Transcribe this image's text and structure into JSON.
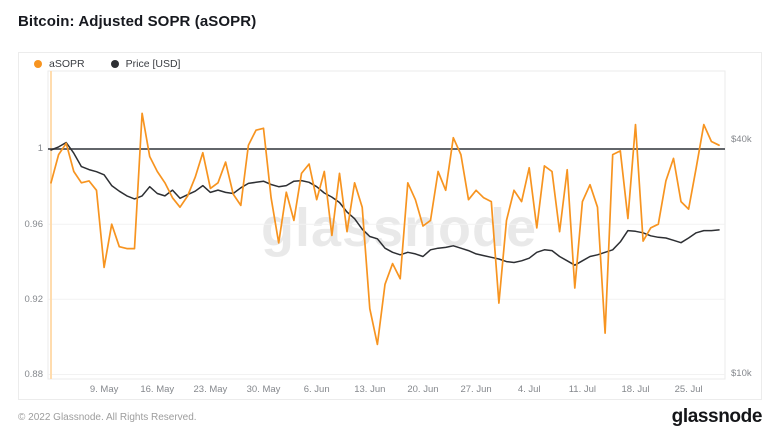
{
  "page": {
    "title": "Bitcoin: Adjusted SOPR (aSOPR)"
  },
  "legend": [
    {
      "label": "aSOPR",
      "color": "#f79420"
    },
    {
      "label": "Price [USD]",
      "color": "#2d2f33"
    }
  ],
  "watermark": "glassnode",
  "footer": {
    "copyright": "© 2022 Glassnode. All Rights Reserved.",
    "brand": "glassnode"
  },
  "colors": {
    "accent_orange": "#f79420",
    "price_black": "#2d2f33",
    "reference_line": "#4c4f54",
    "gridline": "#f2f2f2",
    "plot_border": "#ebebeb",
    "start_marker": "#ffdcae"
  },
  "chart_data": {
    "type": "line",
    "title": "Bitcoin: Adjusted SOPR (aSOPR)",
    "interval": "1d",
    "start_date": "2022-05-02",
    "end_date": "2022-07-29",
    "grid": "horizontal-only",
    "legend_position": "top-left",
    "x_ticks": {
      "indices": [
        7,
        14,
        21,
        28,
        35,
        42,
        49,
        56,
        63,
        70,
        77,
        84
      ],
      "labels": [
        "9. May",
        "16. May",
        "23. May",
        "30. May",
        "6. Jun",
        "13. Jun",
        "20. Jun",
        "27. Jun",
        "4. Jul",
        "11. Jul",
        "18. Jul",
        "25. Jul"
      ]
    },
    "left_axis": {
      "name": "aSOPR",
      "scale": "linear",
      "ticks": [
        1,
        0.96,
        0.92,
        0.88
      ],
      "tick_labels": [
        "1",
        "0.96",
        "0.92",
        "0.88"
      ],
      "top": 1.0415,
      "bottom": 0.8776,
      "reference_line": 1
    },
    "right_axis": {
      "name": "Price [USD]",
      "scale": "log",
      "ticks": [
        40000,
        10000
      ],
      "tick_labels": [
        "$40k",
        "$10k"
      ],
      "top": 59800,
      "bottom": 9700
    },
    "series": [
      {
        "name": "aSOPR",
        "axis": "left",
        "color": "#f79420",
        "width": 1.7,
        "values": [
          0.982,
          0.997,
          1.003,
          0.988,
          0.982,
          0.983,
          0.978,
          0.937,
          0.96,
          0.948,
          0.947,
          0.947,
          1.019,
          0.996,
          0.988,
          0.982,
          0.974,
          0.969,
          0.975,
          0.985,
          0.998,
          0.979,
          0.982,
          0.993,
          0.976,
          0.97,
          1.002,
          1.01,
          1.011,
          0.974,
          0.95,
          0.977,
          0.962,
          0.987,
          0.992,
          0.973,
          0.988,
          0.954,
          0.987,
          0.956,
          0.982,
          0.969,
          0.915,
          0.896,
          0.928,
          0.939,
          0.931,
          0.982,
          0.973,
          0.959,
          0.962,
          0.988,
          0.978,
          1.006,
          0.997,
          0.973,
          0.978,
          0.974,
          0.972,
          0.918,
          0.962,
          0.978,
          0.972,
          0.99,
          0.958,
          0.991,
          0.988,
          0.956,
          0.989,
          0.926,
          0.972,
          0.981,
          0.969,
          0.902,
          0.997,
          0.999,
          0.963,
          1.013,
          0.951,
          0.958,
          0.96,
          0.983,
          0.995,
          0.972,
          0.968,
          0.99,
          1.013,
          1.004,
          1.002
        ]
      },
      {
        "name": "Price [USD]",
        "axis": "right",
        "color": "#2d2f33",
        "width": 1.5,
        "values": [
          37500,
          38200,
          39200,
          36800,
          34000,
          33400,
          33000,
          32400,
          30400,
          29400,
          28600,
          28100,
          28600,
          30200,
          29000,
          28600,
          29600,
          28200,
          28800,
          29400,
          30400,
          29200,
          29600,
          29200,
          29000,
          30000,
          30800,
          31000,
          31200,
          30600,
          30200,
          30400,
          31200,
          31300,
          31000,
          30200,
          29100,
          28400,
          27500,
          26000,
          25000,
          23500,
          22500,
          22200,
          21000,
          20500,
          20200,
          20500,
          20300,
          20000,
          20800,
          21000,
          21100,
          21300,
          21000,
          20700,
          20300,
          20100,
          19900,
          19700,
          19400,
          19300,
          19500,
          19800,
          20500,
          20800,
          20700,
          20000,
          19500,
          19000,
          19500,
          20000,
          20200,
          20500,
          20800,
          21800,
          23300,
          23200,
          23000,
          22600,
          22400,
          22300,
          22000,
          21700,
          22300,
          23000,
          23300,
          23300,
          23400
        ]
      }
    ]
  }
}
